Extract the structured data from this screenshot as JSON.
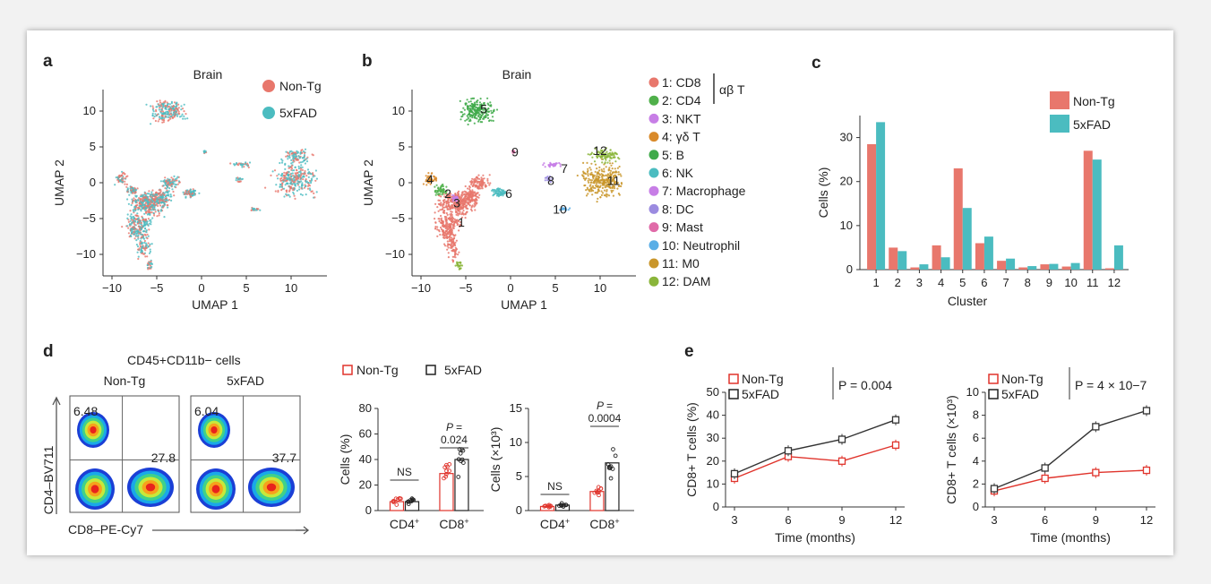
{
  "panels": {
    "a": "a",
    "b": "b",
    "c": "c",
    "d": "d",
    "e": "e"
  },
  "umap_a": {
    "title": "Brain",
    "xlabel": "UMAP 1",
    "ylabel": "UMAP 2",
    "xticks": [
      "−10",
      "−5",
      "0",
      "5",
      "10"
    ],
    "yticks": [
      "10",
      "5",
      "0",
      "−5",
      "−10"
    ],
    "legend": [
      {
        "name": "Non-Tg",
        "color": "#e8776c"
      },
      {
        "name": "5xFAD",
        "color": "#4bbcc0"
      }
    ]
  },
  "umap_b": {
    "title": "Brain",
    "xlabel": "UMAP 1",
    "ylabel": "UMAP 2",
    "xticks": [
      "−10",
      "−5",
      "0",
      "5",
      "10"
    ],
    "yticks": [
      "10",
      "5",
      "0",
      "−5",
      "−10"
    ],
    "cluster_labels": [
      "1",
      "2",
      "3",
      "4",
      "5",
      "6",
      "7",
      "8",
      "9",
      "10",
      "11",
      "12"
    ],
    "legend": [
      {
        "label": "1: CD8",
        "color": "#e8776c"
      },
      {
        "label": "2: CD4",
        "color": "#4fb04a"
      },
      {
        "label": "3: NKT",
        "color": "#c77ee6"
      },
      {
        "label": "4: γδ T",
        "color": "#d98a2a"
      },
      {
        "label": "5: B",
        "color": "#3faa4a"
      },
      {
        "label": "6: NK",
        "color": "#4bbcc0"
      },
      {
        "label": "7: Macrophage",
        "color": "#c77ee6"
      },
      {
        "label": "8: DC",
        "color": "#9b8be0"
      },
      {
        "label": "9: Mast",
        "color": "#e06aa8"
      },
      {
        "label": "10: Neutrophil",
        "color": "#5aaee6"
      },
      {
        "label": "11: M0",
        "color": "#c9962b"
      },
      {
        "label": "12: DAM",
        "color": "#8ab53a"
      }
    ],
    "bracket_label": "αβ T"
  },
  "chart_data": [
    {
      "type": "bar",
      "panel": "c",
      "categories": [
        "1",
        "2",
        "3",
        "4",
        "5",
        "6",
        "7",
        "8",
        "9",
        "10",
        "11",
        "12"
      ],
      "series": [
        {
          "name": "Non-Tg",
          "color": "#e8776c",
          "values": [
            28.5,
            5,
            0.5,
            5.5,
            23,
            6,
            2,
            0.5,
            1.2,
            0.7,
            27,
            0.3
          ]
        },
        {
          "name": "5xFAD",
          "color": "#4bbcc0",
          "values": [
            33.5,
            4.2,
            1.2,
            2.8,
            14,
            7.5,
            2.5,
            0.8,
            1.3,
            1.5,
            25,
            5.5
          ]
        }
      ],
      "xlabel": "Cluster",
      "ylabel": "Cells (%)",
      "ylim": [
        0,
        35
      ],
      "yticks": [
        "0",
        "10",
        "20",
        "30"
      ],
      "legend_position": "top-right"
    },
    {
      "type": "bar",
      "panel": "d-left",
      "categories": [
        "CD4+",
        "CD8+"
      ],
      "series": [
        {
          "name": "Non-Tg",
          "values": [
            7,
            29
          ]
        },
        {
          "name": "5xFAD",
          "values": [
            7,
            40
          ]
        }
      ],
      "ylabel": "Cells (%)",
      "ylim": [
        0,
        80
      ],
      "yticks": [
        "0",
        "20",
        "40",
        "60",
        "80"
      ],
      "annotations": [
        "NS",
        "P =",
        "0.024"
      ]
    },
    {
      "type": "bar",
      "panel": "d-right",
      "categories": [
        "CD4+",
        "CD8+"
      ],
      "series": [
        {
          "name": "Non-Tg",
          "values": [
            0.6,
            2.8
          ]
        },
        {
          "name": "5xFAD",
          "values": [
            0.8,
            7.0
          ]
        }
      ],
      "ylabel": "Cells (×10³)",
      "ylim": [
        0,
        15
      ],
      "yticks": [
        "0",
        "5",
        "10",
        "15"
      ],
      "annotations": [
        "NS",
        "P =",
        "0.0004"
      ]
    },
    {
      "type": "line",
      "panel": "e-left",
      "x": [
        3,
        6,
        9,
        12
      ],
      "series": [
        {
          "name": "Non-Tg",
          "color": "#e0342c",
          "values": [
            12.5,
            22,
            20,
            27
          ]
        },
        {
          "name": "5xFAD",
          "color": "#333333",
          "values": [
            14.5,
            24.5,
            29.5,
            38
          ]
        }
      ],
      "xlabel": "Time (months)",
      "ylabel": "CD8+ T cells (%)",
      "ylim": [
        0,
        50
      ],
      "yticks": [
        "0",
        "10",
        "20",
        "30",
        "40",
        "50"
      ],
      "p_value": "P = 0.004"
    },
    {
      "type": "line",
      "panel": "e-right",
      "x": [
        3,
        6,
        9,
        12
      ],
      "series": [
        {
          "name": "Non-Tg",
          "color": "#e0342c",
          "values": [
            1.4,
            2.5,
            3.0,
            3.2
          ]
        },
        {
          "name": "5xFAD",
          "color": "#333333",
          "values": [
            1.6,
            3.4,
            7.0,
            8.4
          ]
        }
      ],
      "xlabel": "Time (months)",
      "ylabel": "CD8+ T cells (×10³)",
      "ylim": [
        0,
        10
      ],
      "yticks": [
        "0",
        "2",
        "4",
        "6",
        "8",
        "10"
      ],
      "p_value": "P = 4 × 10−7"
    }
  ],
  "flow": {
    "title": "CD45+CD11b− cells",
    "groups": [
      "Non-Tg",
      "5xFAD"
    ],
    "q1": [
      "6.48",
      "6.04"
    ],
    "q2": [
      "27.8",
      "37.7"
    ],
    "xlabel": "CD8–PE-Cy7",
    "ylabel": "CD4–BV711"
  },
  "d_legend": [
    "Non-Tg",
    "5xFAD"
  ],
  "e_legend": [
    "Non-Tg",
    "5xFAD"
  ]
}
